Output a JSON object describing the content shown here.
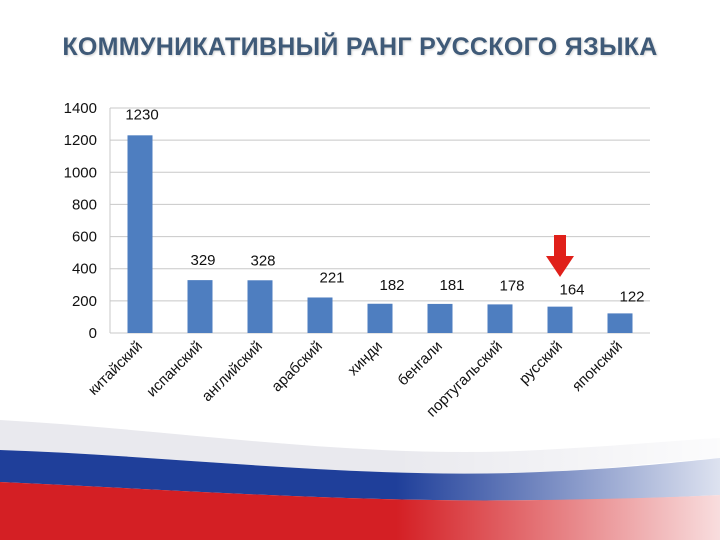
{
  "title": "КОММУНИКАТИВНЫЙ РАНГ РУССКОГО ЯЗЫКА",
  "colors": {
    "bar": "#4e7ec0",
    "title": "#3f5a78",
    "arrow": "#e0201a",
    "grid": "#c8c8c8",
    "flag_blue": "#1f3f9a",
    "flag_red": "#d41f24"
  },
  "chart_data": {
    "type": "bar",
    "categories": [
      "китайский",
      "испанский",
      "английский",
      "арабский",
      "хинди",
      "бенгали",
      "португальский",
      "русский",
      "японский"
    ],
    "values": [
      1230,
      329,
      328,
      221,
      182,
      181,
      178,
      164,
      122
    ],
    "data_labels": [
      "1230",
      "329",
      "328",
      "221",
      "182",
      "181",
      "178",
      "164",
      "122"
    ],
    "yticks": [
      "0",
      "200",
      "400",
      "600",
      "800",
      "1000",
      "1200",
      "1400"
    ],
    "ylim": [
      0,
      1400
    ],
    "grid": true,
    "highlight": {
      "category": "русский",
      "marker": "red-down-arrow"
    }
  }
}
